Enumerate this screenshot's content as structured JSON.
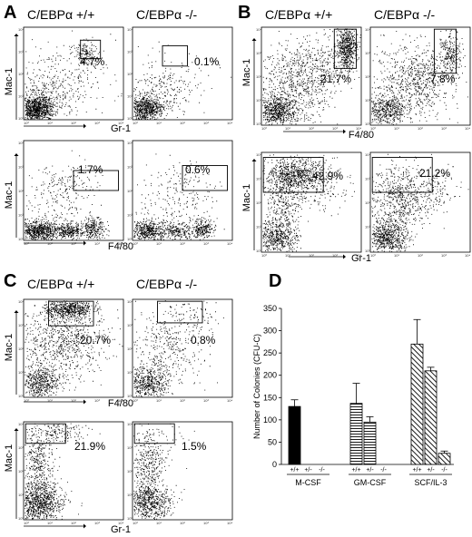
{
  "panels": {
    "A": {
      "letter": "A",
      "genotype_wt": "C/EBPα +/+",
      "genotype_ko": "C/EBPα -/-",
      "top": {
        "y_label": "Mac-1",
        "x_label": "Gr-1",
        "wt_pct": "4.7%",
        "ko_pct": "0.1%"
      },
      "bottom": {
        "y_label": "Mac-1",
        "x_label": "F4/80",
        "wt_pct": "1.7%",
        "ko_pct": "0.6%"
      }
    },
    "B": {
      "letter": "B",
      "genotype_wt": "C/EBPα +/+",
      "genotype_ko": "C/EBPα -/-",
      "top": {
        "y_label": "Mac-1",
        "x_label": "F4/80",
        "wt_pct": "21.7%",
        "ko_pct": "7.8%"
      },
      "bottom": {
        "y_label": "Mac-1",
        "x_label": "Gr-1",
        "wt_pct": "42.9%",
        "ko_pct": "21.2%"
      }
    },
    "C": {
      "letter": "C",
      "genotype_wt": "C/EBPα +/+",
      "genotype_ko": "C/EBPα -/-",
      "top": {
        "y_label": "Mac-1",
        "x_label": "F4/80",
        "wt_pct": "20.7%",
        "ko_pct": "0.8%"
      },
      "bottom": {
        "y_label": "Mac-1",
        "x_label": "Gr-1",
        "wt_pct": "21.9%",
        "ko_pct": "1.5%"
      }
    },
    "D": {
      "letter": "D"
    }
  },
  "flow_ticks": [
    "10⁰",
    "10¹",
    "10²",
    "10³",
    "10⁴"
  ],
  "chart_data": {
    "type": "bar",
    "ylabel": "Number of Colonies (CFU-C)",
    "ylim": [
      0,
      350
    ],
    "yticks": [
      0,
      50,
      100,
      150,
      200,
      250,
      300,
      350
    ],
    "groups": [
      "M-CSF",
      "GM-CSF",
      "SCF/IL-3"
    ],
    "genotypes": [
      "+/+",
      "+/-",
      "-/-"
    ],
    "values": [
      [
        130,
        0,
        0
      ],
      [
        137,
        95,
        0
      ],
      [
        270,
        210,
        25
      ]
    ],
    "errors": [
      [
        15,
        0,
        0
      ],
      [
        45,
        12,
        0
      ],
      [
        55,
        8,
        5
      ]
    ],
    "fills": [
      "solid-black",
      "horizontal-stripes",
      "diagonal-stripes"
    ]
  }
}
